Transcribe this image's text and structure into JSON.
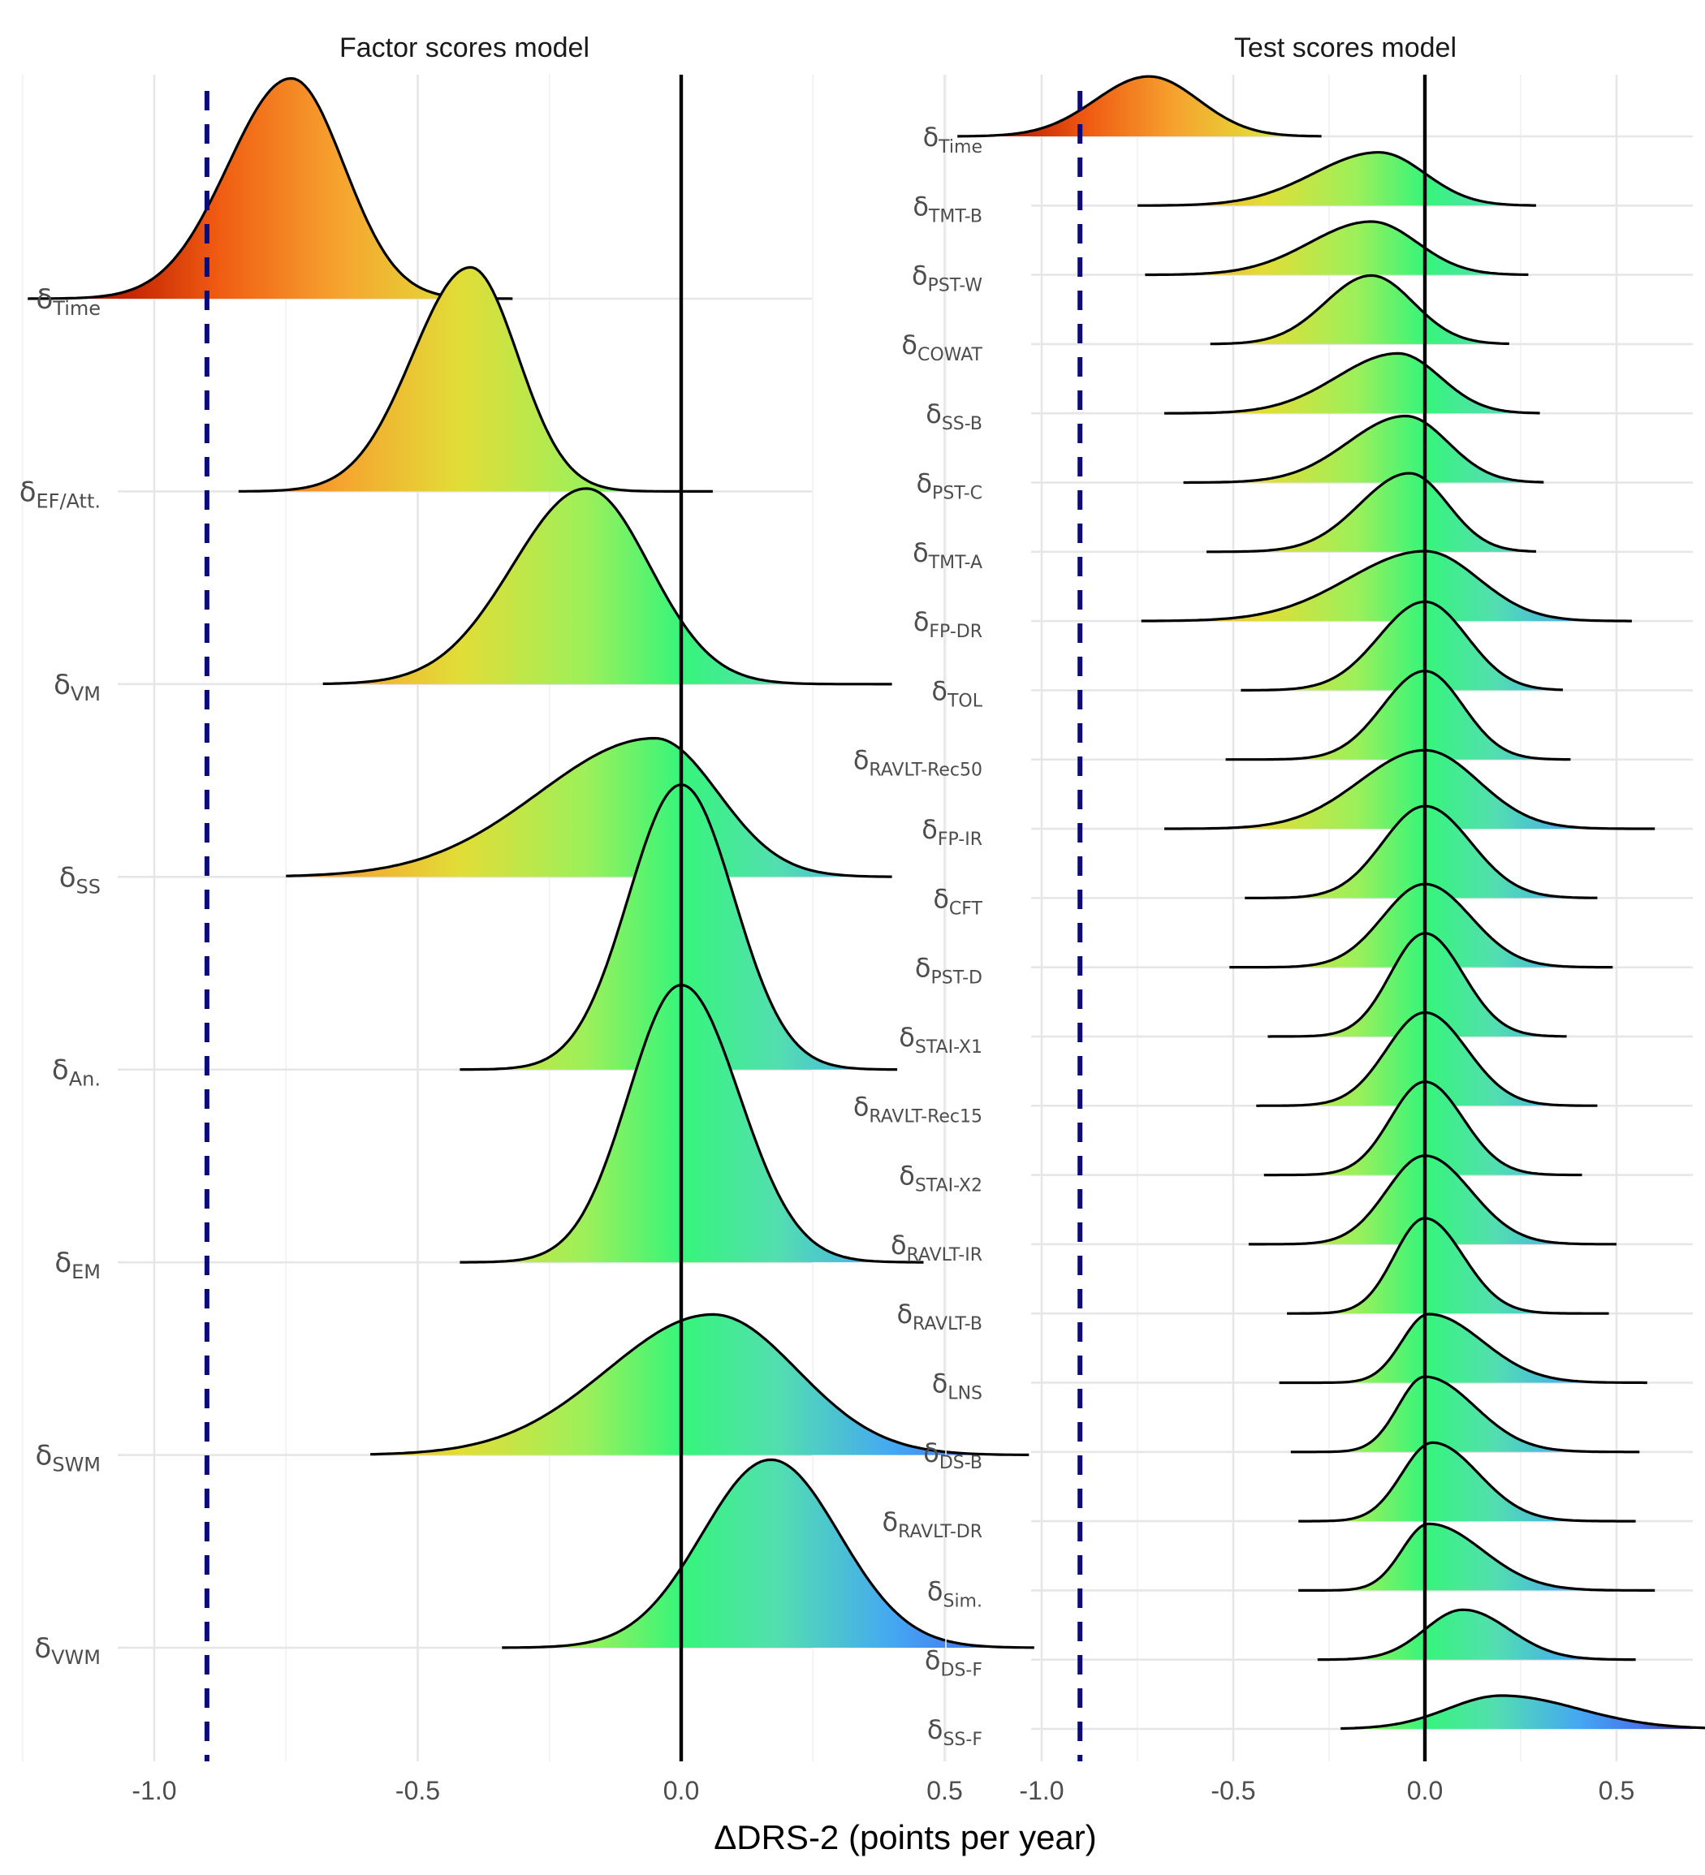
{
  "chart_data": [
    {
      "type": "ridgeline",
      "title": "Factor scores model",
      "xlabel": "ΔDRS-2 (points per year)",
      "xlim": [
        -1.25,
        0.85
      ],
      "x_ticks": [
        "-1.0",
        "-0.5",
        "0.0",
        "0.5"
      ],
      "x_tick_values": [
        -1.0,
        -0.5,
        0.0,
        0.5
      ],
      "reference_lines": {
        "solid": 0.0,
        "dashed": -0.9
      },
      "grid": true,
      "fill": "gradient by x (turbo)",
      "series": [
        {
          "symbol": "δ",
          "subscript": "Time",
          "mode": -0.74,
          "sd_left": 0.12,
          "sd_right": 0.1,
          "min": -1.24,
          "max": -0.32,
          "peak": 1.16
        },
        {
          "symbol": "δ",
          "subscript": "EF/Att.",
          "mode": -0.4,
          "sd_left": 0.11,
          "sd_right": 0.09,
          "min": -0.84,
          "max": 0.06,
          "peak": 1.18
        },
        {
          "symbol": "δ",
          "subscript": "VM",
          "mode": -0.18,
          "sd_left": 0.14,
          "sd_right": 0.12,
          "min": -0.68,
          "max": 0.4,
          "peak": 1.03
        },
        {
          "symbol": "δ",
          "subscript": "SS",
          "mode": -0.05,
          "sd_left": 0.22,
          "sd_right": 0.12,
          "min": -0.75,
          "max": 0.4,
          "peak": 0.73
        },
        {
          "symbol": "δ",
          "subscript": "An.",
          "mode": 0.0,
          "sd_left": 0.1,
          "sd_right": 0.1,
          "min": -0.42,
          "max": 0.41,
          "peak": 1.5
        },
        {
          "symbol": "δ",
          "subscript": "EM",
          "mode": 0.0,
          "sd_left": 0.1,
          "sd_right": 0.11,
          "min": -0.42,
          "max": 0.46,
          "peak": 1.46
        },
        {
          "symbol": "δ",
          "subscript": "SWM",
          "mode": 0.06,
          "sd_left": 0.2,
          "sd_right": 0.16,
          "min": -0.59,
          "max": 0.66,
          "peak": 0.74
        },
        {
          "symbol": "δ",
          "subscript": "VWM",
          "mode": 0.17,
          "sd_left": 0.13,
          "sd_right": 0.13,
          "min": -0.34,
          "max": 0.67,
          "peak": 0.99
        }
      ]
    },
    {
      "type": "ridgeline",
      "title": "Test scores model",
      "xlabel": "ΔDRS-2 (points per year)",
      "xlim": [
        -1.25,
        0.85
      ],
      "x_ticks": [
        "-1.0",
        "-0.5",
        "0.0",
        "0.5"
      ],
      "x_tick_values": [
        -1.0,
        -0.5,
        0.0,
        0.5
      ],
      "reference_lines": {
        "solid": 0.0,
        "dashed": -0.9
      },
      "grid": true,
      "fill": "gradient by x (turbo)",
      "series": [
        {
          "symbol": "δ",
          "subscript": "Time",
          "mode": -0.72,
          "sd_left": 0.14,
          "sd_right": 0.13,
          "min": -1.22,
          "max": -0.27,
          "peak": 0.9
        },
        {
          "symbol": "δ",
          "subscript": "TMT-B",
          "mode": -0.12,
          "sd_left": 0.17,
          "sd_right": 0.12,
          "min": -0.75,
          "max": 0.29,
          "peak": 0.8
        },
        {
          "symbol": "δ",
          "subscript": "PST-W",
          "mode": -0.14,
          "sd_left": 0.16,
          "sd_right": 0.12,
          "min": -0.73,
          "max": 0.27,
          "peak": 0.8
        },
        {
          "symbol": "δ",
          "subscript": "COWAT",
          "mode": -0.14,
          "sd_left": 0.12,
          "sd_right": 0.11,
          "min": -0.56,
          "max": 0.22,
          "peak": 1.03
        },
        {
          "symbol": "δ",
          "subscript": "SS-B",
          "mode": -0.07,
          "sd_left": 0.16,
          "sd_right": 0.11,
          "min": -0.68,
          "max": 0.3,
          "peak": 0.9
        },
        {
          "symbol": "δ",
          "subscript": "PST-C",
          "mode": -0.05,
          "sd_left": 0.15,
          "sd_right": 0.11,
          "min": -0.63,
          "max": 0.31,
          "peak": 1.0
        },
        {
          "symbol": "δ",
          "subscript": "TMT-A",
          "mode": -0.04,
          "sd_left": 0.13,
          "sd_right": 0.1,
          "min": -0.57,
          "max": 0.29,
          "peak": 1.18
        },
        {
          "symbol": "δ",
          "subscript": "FP-DR",
          "mode": 0.0,
          "sd_left": 0.2,
          "sd_right": 0.14,
          "min": -0.74,
          "max": 0.54,
          "peak": 1.05
        },
        {
          "symbol": "δ",
          "subscript": "TOL",
          "mode": 0.0,
          "sd_left": 0.12,
          "sd_right": 0.11,
          "min": -0.48,
          "max": 0.36,
          "peak": 1.33
        },
        {
          "symbol": "δ",
          "subscript": "RAVLT-Rec50",
          "mode": 0.0,
          "sd_left": 0.11,
          "sd_right": 0.1,
          "min": -0.52,
          "max": 0.38,
          "peak": 1.33
        },
        {
          "symbol": "δ",
          "subscript": "FP-IR",
          "mode": 0.0,
          "sd_left": 0.17,
          "sd_right": 0.14,
          "min": -0.68,
          "max": 0.6,
          "peak": 1.18
        },
        {
          "symbol": "δ",
          "subscript": "CFT",
          "mode": 0.0,
          "sd_left": 0.11,
          "sd_right": 0.12,
          "min": -0.47,
          "max": 0.45,
          "peak": 1.38
        },
        {
          "symbol": "δ",
          "subscript": "PST-D",
          "mode": 0.0,
          "sd_left": 0.11,
          "sd_right": 0.12,
          "min": -0.51,
          "max": 0.49,
          "peak": 1.25
        },
        {
          "symbol": "δ",
          "subscript": "STAI-X1",
          "mode": 0.0,
          "sd_left": 0.09,
          "sd_right": 0.1,
          "min": -0.41,
          "max": 0.37,
          "peak": 1.55
        },
        {
          "symbol": "δ",
          "subscript": "RAVLT-Rec15",
          "mode": 0.0,
          "sd_left": 0.1,
          "sd_right": 0.11,
          "min": -0.44,
          "max": 0.45,
          "peak": 1.4
        },
        {
          "symbol": "δ",
          "subscript": "STAI-X2",
          "mode": 0.0,
          "sd_left": 0.09,
          "sd_right": 0.1,
          "min": -0.42,
          "max": 0.41,
          "peak": 1.4
        },
        {
          "symbol": "δ",
          "subscript": "RAVLT-IR",
          "mode": 0.0,
          "sd_left": 0.1,
          "sd_right": 0.12,
          "min": -0.46,
          "max": 0.5,
          "peak": 1.33
        },
        {
          "symbol": "δ",
          "subscript": "RAVLT-B",
          "mode": 0.0,
          "sd_left": 0.08,
          "sd_right": 0.1,
          "min": -0.36,
          "max": 0.48,
          "peak": 1.43
        },
        {
          "symbol": "δ",
          "subscript": "LNS",
          "mode": 0.01,
          "sd_left": 0.07,
          "sd_right": 0.14,
          "min": -0.38,
          "max": 0.58,
          "peak": 1.03
        },
        {
          "symbol": "δ",
          "subscript": "DS-B",
          "mode": 0.0,
          "sd_left": 0.07,
          "sd_right": 0.13,
          "min": -0.35,
          "max": 0.56,
          "peak": 1.13
        },
        {
          "symbol": "δ",
          "subscript": "RAVLT-DR",
          "mode": 0.02,
          "sd_left": 0.08,
          "sd_right": 0.12,
          "min": -0.33,
          "max": 0.55,
          "peak": 1.18
        },
        {
          "symbol": "δ",
          "subscript": "Sim.",
          "mode": 0.01,
          "sd_left": 0.07,
          "sd_right": 0.14,
          "min": -0.33,
          "max": 0.6,
          "peak": 1.0
        },
        {
          "symbol": "δ",
          "subscript": "DS-F",
          "mode": 0.1,
          "sd_left": 0.1,
          "sd_right": 0.12,
          "min": -0.28,
          "max": 0.55,
          "peak": 0.75
        },
        {
          "symbol": "δ",
          "subscript": "SS-F",
          "mode": 0.2,
          "sd_left": 0.14,
          "sd_right": 0.2,
          "min": -0.22,
          "max": 0.75,
          "peak": 0.5
        }
      ]
    }
  ]
}
